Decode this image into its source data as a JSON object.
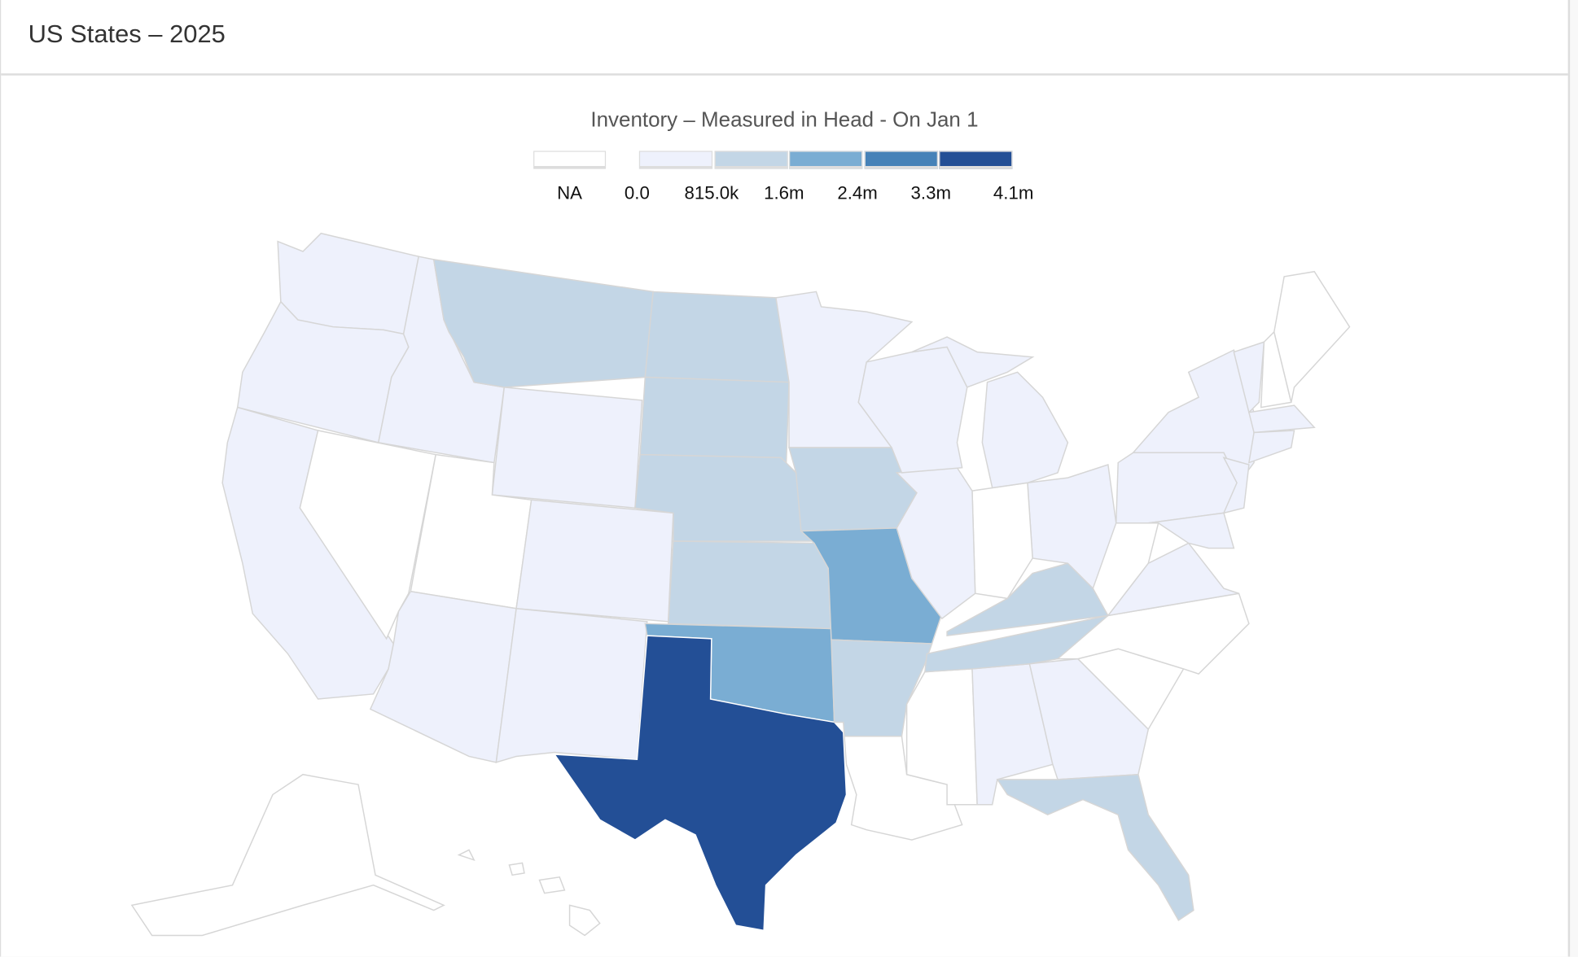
{
  "header": {
    "title": "US States – 2025"
  },
  "legend": {
    "title": "Inventory – Measured in Head - On Jan 1",
    "na_label": "NA",
    "na_color": "#ffffff",
    "bins": [
      {
        "color": "#eef1fc"
      },
      {
        "color": "#c3d6e6"
      },
      {
        "color": "#7aadd3"
      },
      {
        "color": "#4682b8"
      },
      {
        "color": "#234f96"
      }
    ],
    "break_labels": [
      "0.0",
      "815.0k",
      "1.6m",
      "2.4m",
      "3.3m",
      "4.1m"
    ]
  },
  "map_data": {
    "WA": 0,
    "OR": 0,
    "CA": 0,
    "ID": 0,
    "NV": null,
    "UT": null,
    "AZ": 0,
    "MT": 1,
    "WY": 0,
    "CO": 0,
    "NM": 0,
    "ND": 1,
    "SD": 1,
    "NE": 1,
    "KS": 1,
    "OK": 2,
    "TX": 4,
    "MN": 0,
    "IA": 1,
    "MO": 2,
    "AR": 1,
    "LA": null,
    "WI": 0,
    "IL": 0,
    "MI": 0,
    "IN": null,
    "OH": 0,
    "KY": 1,
    "TN": 1,
    "MS": null,
    "AL": 0,
    "GA": 0,
    "FL": 1,
    "SC": null,
    "NC": null,
    "VA": 0,
    "WV": null,
    "PA": 0,
    "NY": 0,
    "NJ": 0,
    "MD": 0,
    "VT": 0,
    "NH": null,
    "ME": null,
    "MA": 0,
    "CT": 0,
    "AK": null,
    "HI": null
  }
}
